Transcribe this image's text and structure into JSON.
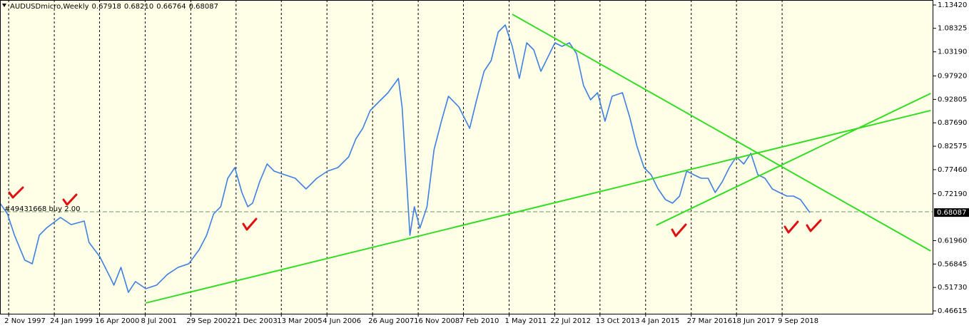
{
  "chart_data": {
    "type": "line",
    "title": "AUDUSDmicro,Weekly",
    "ohlc": [
      "0.67918",
      "0.68210",
      "0.66764",
      "0.68087"
    ],
    "x": [
      1997.76,
      1997.96,
      1998.15,
      1998.43,
      1998.63,
      1998.82,
      1999.01,
      1999.39,
      1999.68,
      2000.03,
      2000.16,
      2000.45,
      2000.74,
      2000.83,
      2001.02,
      2001.22,
      2001.41,
      2001.69,
      2001.98,
      2002.27,
      2002.56,
      2002.85,
      2003.13,
      2003.33,
      2003.52,
      2003.71,
      2003.9,
      2004.09,
      2004.28,
      2004.44,
      2004.57,
      2004.76,
      2004.96,
      2005.15,
      2005.43,
      2005.72,
      2006.01,
      2006.3,
      2006.59,
      2006.87,
      2007.16,
      2007.35,
      2007.54,
      2007.74,
      2007.93,
      2008.22,
      2008.5,
      2008.6,
      2008.73,
      2008.81,
      2008.93,
      2009.08,
      2009.27,
      2009.46,
      2009.66,
      2009.85,
      2010.13,
      2010.42,
      2010.61,
      2010.81,
      2011.0,
      2011.19,
      2011.38,
      2011.57,
      2011.76,
      2011.96,
      2012.15,
      2012.34,
      2012.53,
      2012.72,
      2012.91,
      2013.11,
      2013.3,
      2013.49,
      2013.68,
      2013.87,
      2014.07,
      2014.26,
      2014.54,
      2014.74,
      2014.93,
      2015.12,
      2015.31,
      2015.5,
      2015.7,
      2015.89,
      2016.08,
      2016.27,
      2016.46,
      2016.66,
      2016.85,
      2017.04,
      2017.23,
      2017.42,
      2017.61,
      2017.81,
      2018.0,
      2018.19,
      2018.38,
      2018.58,
      2018.77,
      2018.97,
      2019.15,
      2019.34,
      2019.59
    ],
    "series": [
      {
        "color": "#3f7fdf",
        "values": [
          0.7014,
          0.678,
          0.6313,
          0.5768,
          0.569,
          0.6313,
          0.6469,
          0.6702,
          0.6546,
          0.6624,
          0.6157,
          0.5846,
          0.5379,
          0.5223,
          0.5612,
          0.5067,
          0.5301,
          0.5145,
          0.5223,
          0.5457,
          0.5612,
          0.569,
          0.6001,
          0.6313,
          0.678,
          0.6936,
          0.7558,
          0.7792,
          0.7247,
          0.6936,
          0.7014,
          0.7481,
          0.787,
          0.7714,
          0.7636,
          0.7558,
          0.7325,
          0.7558,
          0.7714,
          0.7792,
          0.8026,
          0.8415,
          0.8648,
          0.9038,
          0.9193,
          0.9427,
          0.9738,
          0.9115,
          0.7403,
          0.6313,
          0.6936,
          0.6469,
          0.6936,
          0.8181,
          0.8804,
          0.9349,
          0.9115,
          0.8648,
          0.9271,
          0.9894,
          1.0128,
          1.075,
          1.0906,
          1.0439,
          0.9738,
          1.0517,
          1.0361,
          0.9894,
          1.0205,
          1.0517,
          1.0439,
          1.0517,
          1.0283,
          0.9583,
          0.9271,
          0.9427,
          0.8804,
          0.9349,
          0.9427,
          0.8882,
          0.8259,
          0.7792,
          0.7636,
          0.7325,
          0.7091,
          0.7014,
          0.7169,
          0.7714,
          0.7636,
          0.7558,
          0.7558,
          0.7247,
          0.7481,
          0.7792,
          0.8026,
          0.787,
          0.8103,
          0.7636,
          0.7558,
          0.7325,
          0.7247,
          0.7169,
          0.7169,
          0.7091,
          0.68087
        ]
      }
    ],
    "xlim": [
      1997.76,
      2022.92
    ],
    "ylim": [
      0.4599,
      1.1451
    ],
    "xticks": [
      {
        "value": 1997.84,
        "label": "2 Nov 1997"
      },
      {
        "value": 1999.07,
        "label": "24 Jan 1999"
      },
      {
        "value": 2000.29,
        "label": "16 Apr 2000"
      },
      {
        "value": 2001.52,
        "label": "8 Jul 2001"
      },
      {
        "value": 2002.75,
        "label": "29 Sep 2002"
      },
      {
        "value": 2003.97,
        "label": "21 Dec 2003"
      },
      {
        "value": 2005.19,
        "label": "13 Mar 2005"
      },
      {
        "value": 2006.42,
        "label": "4 Jun 2006"
      },
      {
        "value": 2007.65,
        "label": "26 Aug 2007"
      },
      {
        "value": 2008.88,
        "label": "16 Nov 2008"
      },
      {
        "value": 2010.1,
        "label": "7 Feb 2010"
      },
      {
        "value": 2011.33,
        "label": "1 May 2011"
      },
      {
        "value": 2012.56,
        "label": "22 Jul 2012"
      },
      {
        "value": 2013.78,
        "label": "13 Oct 2013"
      },
      {
        "value": 2015.01,
        "label": "4 Jan 2015"
      },
      {
        "value": 2016.24,
        "label": "27 Mar 2016"
      },
      {
        "value": 2017.46,
        "label": "18 Jun 2017"
      },
      {
        "value": 2018.69,
        "label": "9 Sep 2018"
      }
    ],
    "yticks": [
      {
        "value": 1.1342,
        "label": "1.13420"
      },
      {
        "value": 1.08325,
        "label": "1.08325"
      },
      {
        "value": 1.0319,
        "label": "1.03190"
      },
      {
        "value": 0.9792,
        "label": "0.97920"
      },
      {
        "value": 0.92805,
        "label": "0.92805"
      },
      {
        "value": 0.8769,
        "label": "0.87690"
      },
      {
        "value": 0.82575,
        "label": "0.82575"
      },
      {
        "value": 0.7746,
        "label": "0.77460"
      },
      {
        "value": 0.7219,
        "label": "0.72190"
      },
      {
        "value": 0.6196,
        "label": "0.61960"
      },
      {
        "value": 0.56845,
        "label": "0.56845"
      },
      {
        "value": 0.5173,
        "label": "0.51730"
      },
      {
        "value": 0.46615,
        "label": "0.46615"
      }
    ],
    "grid": true,
    "background": "#ffffe8",
    "last_price": {
      "value": 0.68087,
      "label": "0.68087"
    },
    "order": {
      "label": "#49431668 buy 2.00",
      "price": 0.6825,
      "color": "#6a9a6a"
    },
    "trendline_color": "#33dd22",
    "trendlines": [
      {
        "x": [
          2001.69,
          2022.85
        ],
        "y": [
          0.4834,
          0.9038
        ]
      },
      {
        "x": [
          2015.45,
          2022.85
        ],
        "y": [
          0.6531,
          0.9411
        ]
      },
      {
        "x": [
          2011.57,
          2022.85
        ],
        "y": [
          1.114,
          0.597
        ]
      }
    ]
  }
}
